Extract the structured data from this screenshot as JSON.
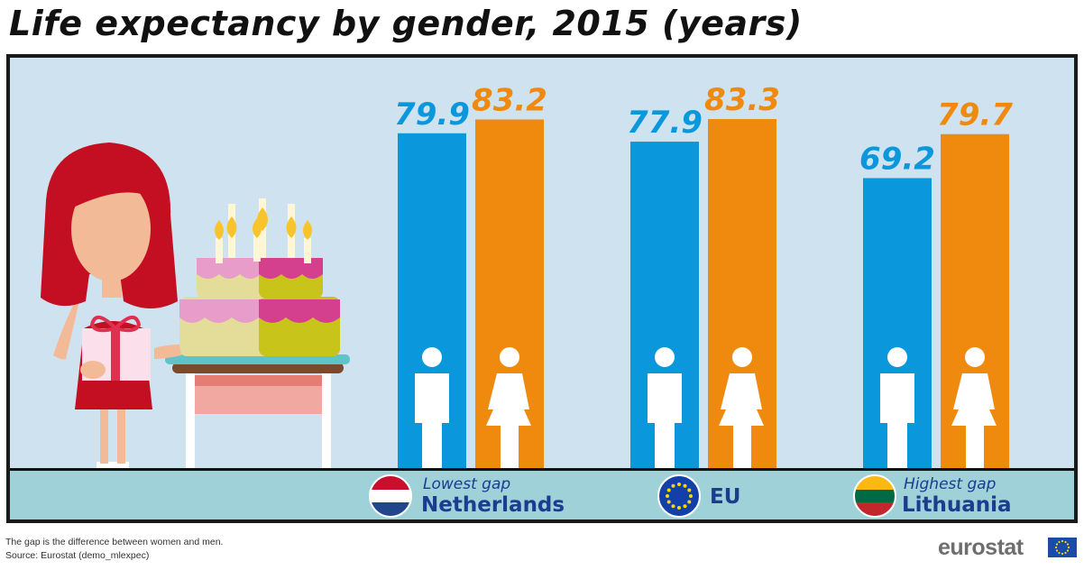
{
  "title": "Life expectancy by gender, 2015 (years)",
  "colors": {
    "men": "#0b97dc",
    "women": "#f08a0e",
    "panel": "#cfe2f0",
    "ground": "#9ed1d8",
    "label": "#1b3c8f"
  },
  "chart_data": {
    "type": "bar",
    "title": "Life expectancy by gender, 2015 (years)",
    "categories": [
      "Netherlands",
      "EU",
      "Lithuania"
    ],
    "series": [
      {
        "values": [
          79.9,
          77.9,
          69.2
        ]
      },
      {
        "values": [
          83.2,
          83.3,
          79.7
        ]
      }
    ],
    "data_labels": [
      [
        "79.9",
        "77.9",
        "69.2"
      ],
      [
        "83.2",
        "83.3",
        "79.7"
      ]
    ],
    "grid": false,
    "legend": "none",
    "icons": [
      "man-icon",
      "woman-icon"
    ]
  },
  "countries": [
    {
      "gap_label": "Lowest gap",
      "name": "Netherlands",
      "flag": "netherlands-flag-icon"
    },
    {
      "gap_label": "",
      "name": "EU",
      "flag": "eu-flag-icon"
    },
    {
      "gap_label": "Highest gap",
      "name": "Lithuania",
      "flag": "lithuania-flag-icon"
    }
  ],
  "footnote": {
    "line1": "The gap is the difference between women and men.",
    "line2": "Source: Eurostat (demo_mlexpec)"
  },
  "logo": {
    "text": "eurostat",
    "icon": "eu-flag-icon"
  }
}
